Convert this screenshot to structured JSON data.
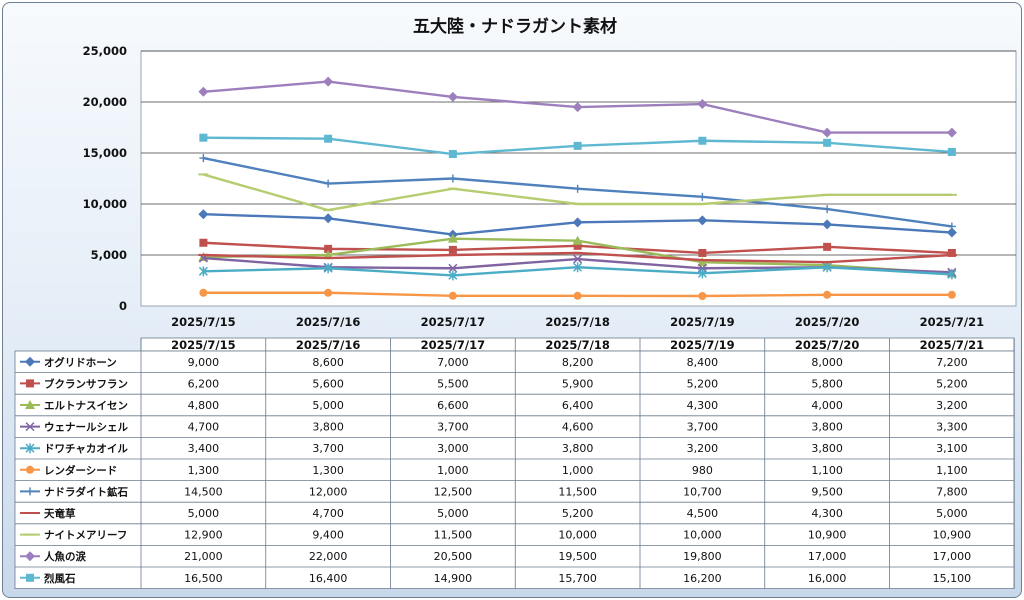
{
  "chart_data": {
    "type": "line",
    "title": "五大陸・ナドラガント素材",
    "categories": [
      "2025/7/15",
      "2025/7/16",
      "2025/7/17",
      "2025/7/18",
      "2025/7/19",
      "2025/7/20",
      "2025/7/21"
    ],
    "ylim": [
      0,
      25000
    ],
    "yticks": [
      "0",
      "5,000",
      "10,000",
      "15,000",
      "20,000",
      "25,000"
    ],
    "grid": true,
    "legend": "data-table",
    "series": [
      {
        "name": "オグリドホーン",
        "color": "#4a78b8",
        "marker": "diamond",
        "values": [
          9000,
          8600,
          7000,
          8200,
          8400,
          8000,
          7200
        ],
        "labels": [
          "9,000",
          "8,600",
          "7,000",
          "8,200",
          "8,400",
          "8,000",
          "7,200"
        ]
      },
      {
        "name": "ブクランサフラン",
        "color": "#c0504d",
        "marker": "square",
        "values": [
          6200,
          5600,
          5500,
          5900,
          5200,
          5800,
          5200
        ],
        "labels": [
          "6,200",
          "5,600",
          "5,500",
          "5,900",
          "5,200",
          "5,800",
          "5,200"
        ]
      },
      {
        "name": "エルトナスイセン",
        "color": "#9bbb59",
        "marker": "triangle",
        "values": [
          4800,
          5000,
          6600,
          6400,
          4300,
          4000,
          3200
        ],
        "labels": [
          "4,800",
          "5,000",
          "6,600",
          "6,400",
          "4,300",
          "4,000",
          "3,200"
        ]
      },
      {
        "name": "ウェナールシェル",
        "color": "#8064a2",
        "marker": "x",
        "values": [
          4700,
          3800,
          3700,
          4600,
          3700,
          3800,
          3300
        ],
        "labels": [
          "4,700",
          "3,800",
          "3,700",
          "4,600",
          "3,700",
          "3,800",
          "3,300"
        ]
      },
      {
        "name": "ドワチャカオイル",
        "color": "#4bacc6",
        "marker": "star",
        "values": [
          3400,
          3700,
          3000,
          3800,
          3200,
          3800,
          3100
        ],
        "labels": [
          "3,400",
          "3,700",
          "3,000",
          "3,800",
          "3,200",
          "3,800",
          "3,100"
        ]
      },
      {
        "name": "レンダーシード",
        "color": "#f79646",
        "marker": "circle",
        "values": [
          1300,
          1300,
          1000,
          1000,
          980,
          1100,
          1100
        ],
        "labels": [
          "1,300",
          "1,300",
          "1,000",
          "1,000",
          "980",
          "1,100",
          "1,100"
        ]
      },
      {
        "name": "ナドラダイト鉱石",
        "color": "#4f81bd",
        "marker": "plus",
        "values": [
          14500,
          12000,
          12500,
          11500,
          10700,
          9500,
          7800
        ],
        "labels": [
          "14,500",
          "12,000",
          "12,500",
          "11,500",
          "10,700",
          "9,500",
          "7,800"
        ]
      },
      {
        "name": "天竜草",
        "color": "#c0504d",
        "marker": "dash",
        "values": [
          5000,
          4700,
          5000,
          5200,
          4500,
          4300,
          5000
        ],
        "labels": [
          "5,000",
          "4,700",
          "5,000",
          "5,200",
          "4,500",
          "4,300",
          "5,000"
        ]
      },
      {
        "name": "ナイトメアリーフ",
        "color": "#b5cc6f",
        "marker": "dash",
        "values": [
          12900,
          9400,
          11500,
          10000,
          10000,
          10900,
          10900
        ],
        "labels": [
          "12,900",
          "9,400",
          "11,500",
          "10,000",
          "10,000",
          "10,900",
          "10,900"
        ]
      },
      {
        "name": "人魚の涙",
        "color": "#9c7fbc",
        "marker": "diamond",
        "values": [
          21000,
          22000,
          20500,
          19500,
          19800,
          17000,
          17000
        ],
        "labels": [
          "21,000",
          "22,000",
          "20,500",
          "19,500",
          "19,800",
          "17,000",
          "17,000"
        ]
      },
      {
        "name": "烈風石",
        "color": "#5fb8d1",
        "marker": "square",
        "values": [
          16500,
          16400,
          14900,
          15700,
          16200,
          16000,
          15100
        ],
        "labels": [
          "16,500",
          "16,400",
          "14,900",
          "15,700",
          "16,200",
          "16,000",
          "15,100"
        ]
      }
    ]
  }
}
